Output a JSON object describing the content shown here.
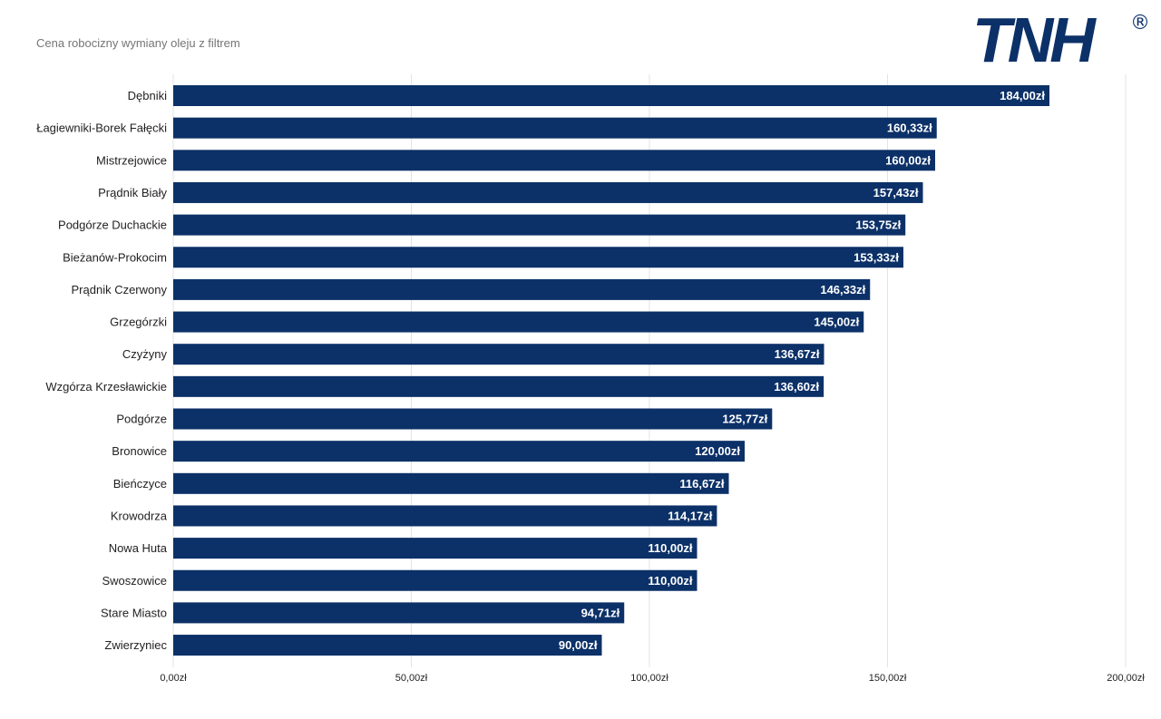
{
  "chart_data": {
    "type": "bar",
    "orientation": "horizontal",
    "title": "Cena robocizny wymiany oleju z filtrem",
    "xlabel": "",
    "ylabel": "",
    "categories": [
      "Dębniki",
      "Łagiewniki-Borek Fałęcki",
      "Mistrzejowice",
      "Prądnik Biały",
      "Podgórze Duchackie",
      "Bieżanów-Prokocim",
      "Prądnik Czerwony",
      "Grzegórzki",
      "Czyżyny",
      "Wzgórza Krzesławickie",
      "Podgórze",
      "Bronowice",
      "Bieńczyce",
      "Krowodrza",
      "Nowa Huta",
      "Swoszowice",
      "Stare Miasto",
      "Zwierzyniec"
    ],
    "values": [
      184.0,
      160.33,
      160.0,
      157.43,
      153.75,
      153.33,
      146.33,
      145.0,
      136.67,
      136.6,
      125.77,
      120.0,
      116.67,
      114.17,
      110.0,
      110.0,
      94.71,
      90.0
    ],
    "value_labels": [
      "184,00zł",
      "160,33zł",
      "160,00zł",
      "157,43zł",
      "153,75zł",
      "153,33zł",
      "146,33zł",
      "145,00zł",
      "136,67zł",
      "136,60zł",
      "125,77zł",
      "120,00zł",
      "116,67zł",
      "114,17zł",
      "110,00zł",
      "110,00zł",
      "94,71zł",
      "90,00zł"
    ],
    "xlim": [
      0,
      200
    ],
    "xticks": [
      0,
      50,
      100,
      150,
      200
    ],
    "xtick_labels": [
      "0,00zł",
      "50,00zł",
      "100,00zł",
      "150,00zł",
      "200,00zł"
    ],
    "grid": true,
    "legend": "none"
  },
  "logo": {
    "text": "TNH",
    "mark": "®"
  },
  "colors": {
    "bar": "#0c3168",
    "logo": "#0c3168",
    "grid": "#e3e3e3"
  }
}
